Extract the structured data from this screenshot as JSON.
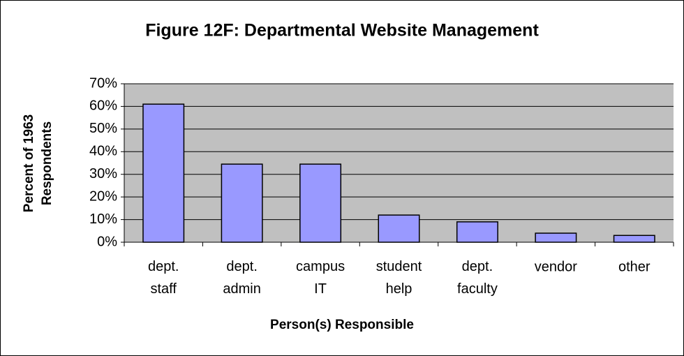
{
  "chart_data": {
    "type": "bar",
    "title": "Figure 12F: Departmental Website Management",
    "x_label": "Person(s) Responsible",
    "y_label": [
      "Percent of 1963",
      "Respondents"
    ],
    "categories": [
      "dept. staff",
      "dept. admin",
      "campus IT",
      "student help",
      "dept. faculty",
      "vendor",
      "other"
    ],
    "values": [
      61,
      34.5,
      34.5,
      12,
      9,
      4,
      3
    ],
    "color": "#9999ff",
    "plot_background": "#c0c0c0",
    "ylim": [
      0,
      70
    ],
    "yticks": [
      {
        "value": 0,
        "label": "0%"
      },
      {
        "value": 10,
        "label": "10%"
      },
      {
        "value": 20,
        "label": "20%"
      },
      {
        "value": 30,
        "label": "30%"
      },
      {
        "value": 40,
        "label": "40%"
      },
      {
        "value": 50,
        "label": "50%"
      },
      {
        "value": 60,
        "label": "60%"
      },
      {
        "value": 70,
        "label": "70%"
      }
    ],
    "grid": true
  }
}
